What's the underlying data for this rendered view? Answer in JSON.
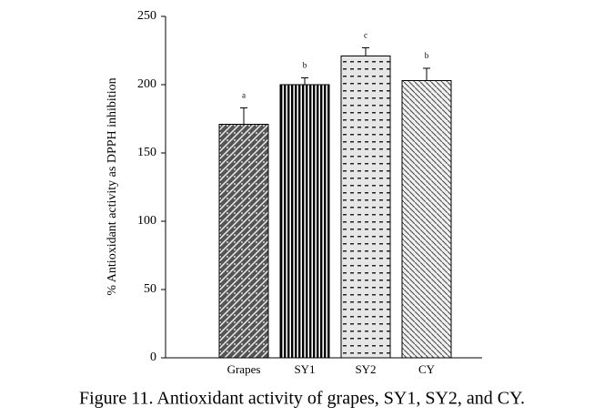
{
  "chart_data": {
    "type": "bar",
    "ylabel": "% Antioxidant activity as DPPH inhibition",
    "caption": "Figure 11. Antioxidant activity of grapes, SY1, SY2, and CY.",
    "categories": [
      "Grapes",
      "SY1",
      "SY2",
      "CY"
    ],
    "values": [
      171,
      200,
      221,
      203
    ],
    "errors": [
      12,
      5,
      6,
      9
    ],
    "significance_labels": [
      "a",
      "b",
      "c",
      "b"
    ],
    "ylim": [
      0,
      250
    ],
    "yticks": [
      0,
      50,
      100,
      150,
      200,
      250
    ],
    "grid": false
  }
}
